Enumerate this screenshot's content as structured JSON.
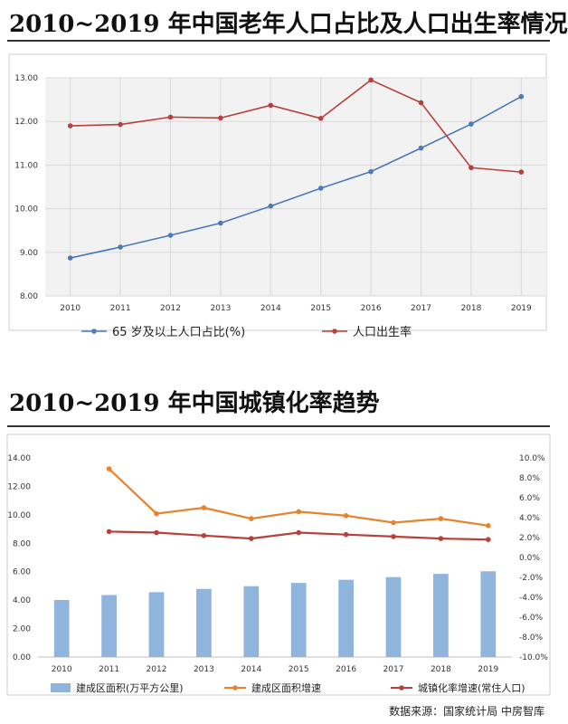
{
  "chart_data": [
    {
      "type": "line",
      "title": "2010~2019 年中国老年人口占比及人口出生率情况",
      "categories": [
        "2010",
        "2011",
        "2012",
        "2013",
        "2014",
        "2015",
        "2016",
        "2017",
        "2018",
        "2019"
      ],
      "ylim": [
        8,
        13
      ],
      "yticks": [
        "8.00",
        "9.00",
        "10.00",
        "11.00",
        "12.00",
        "13.00"
      ],
      "grid": true,
      "legend_position": "bottom",
      "series": [
        {
          "name": "65 岁及以上人口占比(%)",
          "color": "#4a7ab8",
          "values": [
            8.87,
            9.12,
            9.39,
            9.67,
            10.06,
            10.47,
            10.85,
            11.39,
            11.94,
            12.57
          ]
        },
        {
          "name": "人口出生率",
          "color": "#b8403c",
          "values": [
            11.9,
            11.93,
            12.1,
            12.08,
            12.37,
            12.07,
            12.95,
            12.43,
            10.94,
            10.84
          ]
        }
      ]
    },
    {
      "type": "bar+line",
      "title": "2010~2019 年中国城镇化率趋势",
      "categories": [
        "2010",
        "2011",
        "2012",
        "2013",
        "2014",
        "2015",
        "2016",
        "2017",
        "2018",
        "2019"
      ],
      "ylim_left": [
        0,
        14
      ],
      "yticks_left": [
        "0.00",
        "2.00",
        "4.00",
        "6.00",
        "8.00",
        "10.00",
        "12.00",
        "14.00"
      ],
      "ylim_right": [
        -10,
        10
      ],
      "yticks_right": [
        "-10.0%",
        "-8.0%",
        "-6.0%",
        "-4.0%",
        "-2.0%",
        "0.0%",
        "2.0%",
        "4.0%",
        "6.0%",
        "8.0%",
        "10.0%"
      ],
      "legend_position": "bottom",
      "bars": {
        "name": "建成区面积(万平方公里)",
        "color": "#8fb5dc",
        "values": [
          4.01,
          4.36,
          4.56,
          4.79,
          4.98,
          5.21,
          5.43,
          5.62,
          5.85,
          6.03
        ]
      },
      "lines": [
        {
          "name": "建成区面积增速",
          "color": "#e8822c",
          "values": [
            null,
            8.9,
            4.4,
            5.0,
            3.9,
            4.6,
            4.2,
            3.5,
            3.9,
            3.2
          ]
        },
        {
          "name": "城镇化率增速(常住人口)",
          "color": "#b8403c",
          "values": [
            null,
            2.6,
            2.5,
            2.2,
            1.9,
            2.5,
            2.3,
            2.1,
            1.9,
            1.8
          ]
        }
      ]
    }
  ],
  "source": "数据来源：国家统计局 中房智库"
}
